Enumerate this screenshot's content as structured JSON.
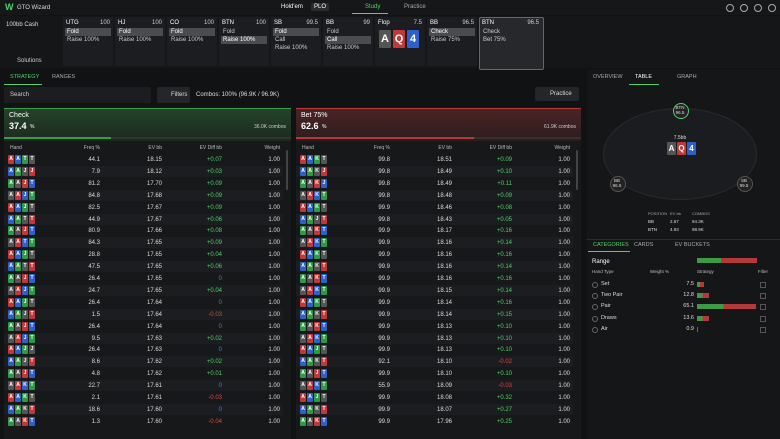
{
  "header": {
    "logo": "GTO Wizard",
    "game_tabs": [
      "Hold'em",
      "PLO"
    ],
    "nav": [
      "Study",
      "Practice"
    ]
  },
  "actions": {
    "format": "100bb Cash",
    "solutions": "Solutions",
    "columns": [
      {
        "pos": "UTG",
        "stack": "100",
        "options": [
          "Fold",
          "Raise 100%"
        ],
        "selected": 0
      },
      {
        "pos": "HJ",
        "stack": "100",
        "options": [
          "Fold",
          "Raise 100%"
        ],
        "selected": 0
      },
      {
        "pos": "CO",
        "stack": "100",
        "options": [
          "Fold",
          "Raise 100%"
        ],
        "selected": 0
      },
      {
        "pos": "BTN",
        "stack": "100",
        "options": [
          "Fold",
          "Raise 100%"
        ],
        "selected": 1
      },
      {
        "pos": "SB",
        "stack": "99.5",
        "options": [
          "Fold",
          "Call",
          "Raise 100%"
        ],
        "selected": 0
      },
      {
        "pos": "BB",
        "stack": "99",
        "options": [
          "Fold",
          "Call",
          "Raise 100%"
        ],
        "selected": 1
      },
      {
        "pos": "Flop",
        "stack": "7.5",
        "cards": [
          "A",
          "Q",
          "4"
        ]
      },
      {
        "pos": "BB",
        "stack": "96.5",
        "options": [
          "Check",
          "Raise 75%"
        ],
        "selected": 0
      },
      {
        "pos": "BTN",
        "stack": "96.5",
        "options": [
          "Check",
          "Bet 75%"
        ],
        "selected": -1
      }
    ]
  },
  "tabs": [
    "STRATEGY",
    "RANGES"
  ],
  "toolbar": {
    "search": "Search",
    "filters": "Filters",
    "combos": "Combos: 100% (96.9K / 96.9K)",
    "practice": "Practice"
  },
  "columns": [
    "Hand",
    "Freq %",
    "EV bb",
    "EV Diff bb",
    "Weight"
  ],
  "panels": [
    {
      "action": "Check",
      "freq": 37.4,
      "unit": "%",
      "combos": "36.0K combos",
      "color": "#3f9a48",
      "rows": [
        [
          "AATT",
          "44.1",
          "18.15",
          "+0.07",
          "1.00"
        ],
        [
          "AAJJ",
          "7.9",
          "18.12",
          "+0.03",
          "1.00"
        ],
        [
          "AAJT",
          "81.2",
          "17.70",
          "+0.09",
          "1.00"
        ],
        [
          "AAJT",
          "84.8",
          "17.68",
          "+0.09",
          "1.00"
        ],
        [
          "AAJT",
          "82.5",
          "17.67",
          "+0.09",
          "1.00"
        ],
        [
          "AATT",
          "44.9",
          "17.67",
          "+0.06",
          "1.00"
        ],
        [
          "AAJT",
          "80.9",
          "17.66",
          "+0.08",
          "1.00"
        ],
        [
          "AATT",
          "84.3",
          "17.65",
          "+0.09",
          "1.00"
        ],
        [
          "AAJT",
          "28.8",
          "17.65",
          "+0.04",
          "1.00"
        ],
        [
          "AATT",
          "47.5",
          "17.65",
          "+0.06",
          "1.00"
        ],
        [
          "AAJT",
          "26.4",
          "17.65",
          "0",
          "1.00"
        ],
        [
          "AAJT",
          "24.7",
          "17.65",
          "+0.04",
          "1.00"
        ],
        [
          "AAJT",
          "26.4",
          "17.64",
          "0",
          "1.00"
        ],
        [
          "AAJT",
          "1.5",
          "17.64",
          "-0.03",
          "1.00"
        ],
        [
          "AAJT",
          "26.4",
          "17.64",
          "0",
          "1.00"
        ],
        [
          "AAJT",
          "9.5",
          "17.63",
          "+0.02",
          "1.00"
        ],
        [
          "AAJJ",
          "26.4",
          "17.63",
          "0",
          "1.00"
        ],
        [
          "AAJT",
          "8.6",
          "17.62",
          "+0.02",
          "1.00"
        ],
        [
          "AAJT",
          "4.8",
          "17.62",
          "+0.01",
          "1.00"
        ],
        [
          "AAKT",
          "22.7",
          "17.61",
          "0",
          "1.00"
        ],
        [
          "AAKT",
          "2.1",
          "17.61",
          "-0.03",
          "1.00"
        ],
        [
          "AAKT",
          "18.6",
          "17.60",
          "0",
          "1.00"
        ],
        [
          "AAKT",
          "1.3",
          "17.60",
          "-0.04",
          "1.00"
        ]
      ]
    },
    {
      "action": "Bet 75%",
      "freq": 62.6,
      "unit": "%",
      "combos": "61.9K combos",
      "color": "#b43a3a",
      "rows": [
        [
          "AAKT",
          "99.8",
          "18.51",
          "+0.09",
          "1.00"
        ],
        [
          "AAKJ",
          "99.8",
          "18.49",
          "+0.10",
          "1.00"
        ],
        [
          "AAKJ",
          "99.8",
          "18.49",
          "+0.11",
          "1.00"
        ],
        [
          "AAKT",
          "99.8",
          "18.48",
          "+0.09",
          "1.00"
        ],
        [
          "AAKT",
          "99.9",
          "18.46",
          "+0.08",
          "1.00"
        ],
        [
          "AAJT",
          "99.8",
          "18.43",
          "+0.05",
          "1.00"
        ],
        [
          "AAKT",
          "99.9",
          "18.17",
          "+0.16",
          "1.00"
        ],
        [
          "AAKT",
          "99.9",
          "18.16",
          "+0.14",
          "1.00"
        ],
        [
          "AAKT",
          "99.9",
          "18.16",
          "+0.16",
          "1.00"
        ],
        [
          "AAKT",
          "99.9",
          "18.16",
          "+0.14",
          "1.00"
        ],
        [
          "AAKT",
          "99.9",
          "18.16",
          "+0.16",
          "1.00"
        ],
        [
          "AAKT",
          "99.9",
          "18.15",
          "+0.14",
          "1.00"
        ],
        [
          "AAKT",
          "99.9",
          "18.14",
          "+0.16",
          "1.00"
        ],
        [
          "AAKT",
          "99.9",
          "18.14",
          "+0.15",
          "1.00"
        ],
        [
          "AAKT",
          "99.9",
          "18.13",
          "+0.10",
          "1.00"
        ],
        [
          "AAKT",
          "99.9",
          "18.13",
          "+0.10",
          "1.00"
        ],
        [
          "AAJT",
          "99.9",
          "18.13",
          "+0.10",
          "1.00"
        ],
        [
          "AAKT",
          "92.1",
          "18.10",
          "-0.02",
          "1.00"
        ],
        [
          "AAJT",
          "99.9",
          "18.10",
          "+0.10",
          "1.00"
        ],
        [
          "AAKT",
          "55.9",
          "18.09",
          "-0.03",
          "1.00"
        ],
        [
          "AAJT",
          "99.9",
          "18.08",
          "+0.32",
          "1.00"
        ],
        [
          "AAKT",
          "99.9",
          "18.07",
          "+0.27",
          "1.00"
        ],
        [
          "AAKT",
          "99.9",
          "17.96",
          "+0.25",
          "1.00"
        ]
      ]
    }
  ],
  "side": {
    "tabs": [
      "OVERVIEW",
      "TABLE",
      "GRAPH"
    ],
    "seats": [
      {
        "pos": "BTN",
        "stack": "96.5"
      },
      {
        "pos": "BB",
        "stack": "96.5"
      },
      {
        "pos": "SB",
        "stack": "99.5"
      }
    ],
    "pot": "7.5bb",
    "board": [
      "A",
      "Q",
      "4"
    ],
    "stats": {
      "headers": [
        "POSITION",
        "EV bb",
        "COMBOS"
      ],
      "rows": [
        [
          "BB",
          "2.67",
          "94.3K"
        ],
        [
          "BTN",
          "4.93",
          "98.9K"
        ]
      ]
    },
    "cat_tabs": [
      "CATEGORIES",
      "CARDS",
      "EV BUCKETS"
    ],
    "range": "Range",
    "col_headers": [
      "Hand Type",
      "Weight %",
      "Strategy",
      "Filter"
    ],
    "categories": [
      {
        "name": "Set",
        "weight": 7.5
      },
      {
        "name": "Two Pair",
        "weight": 12.8
      },
      {
        "name": "Pair",
        "weight": 65.1
      },
      {
        "name": "Draws",
        "weight": 13.6
      },
      {
        "name": "Air",
        "weight": 0.9
      }
    ]
  }
}
